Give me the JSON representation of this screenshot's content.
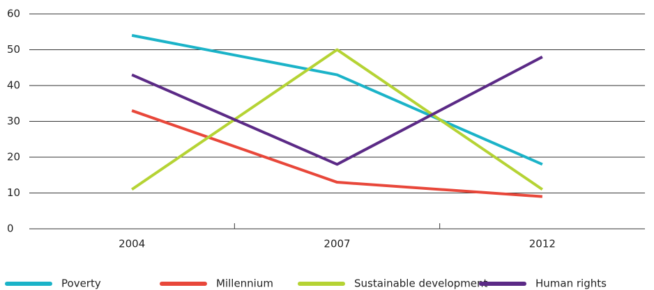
{
  "chart_data": {
    "type": "line",
    "categories": [
      "2004",
      "2007",
      "2012"
    ],
    "series": [
      {
        "name": "Poverty",
        "color": "#1bb3c8",
        "values": [
          54,
          43,
          18
        ]
      },
      {
        "name": "Millennium",
        "color": "#e8473a",
        "values": [
          33,
          13,
          9
        ]
      },
      {
        "name": "Sustainable development",
        "color": "#b5d334",
        "values": [
          11,
          50,
          11
        ]
      },
      {
        "name": "Human rights",
        "color": "#5b2a86",
        "values": [
          43,
          18,
          48
        ]
      }
    ],
    "ylim": [
      0,
      60
    ],
    "yticks": [
      0,
      10,
      20,
      30,
      40,
      50,
      60
    ],
    "grid": true
  }
}
